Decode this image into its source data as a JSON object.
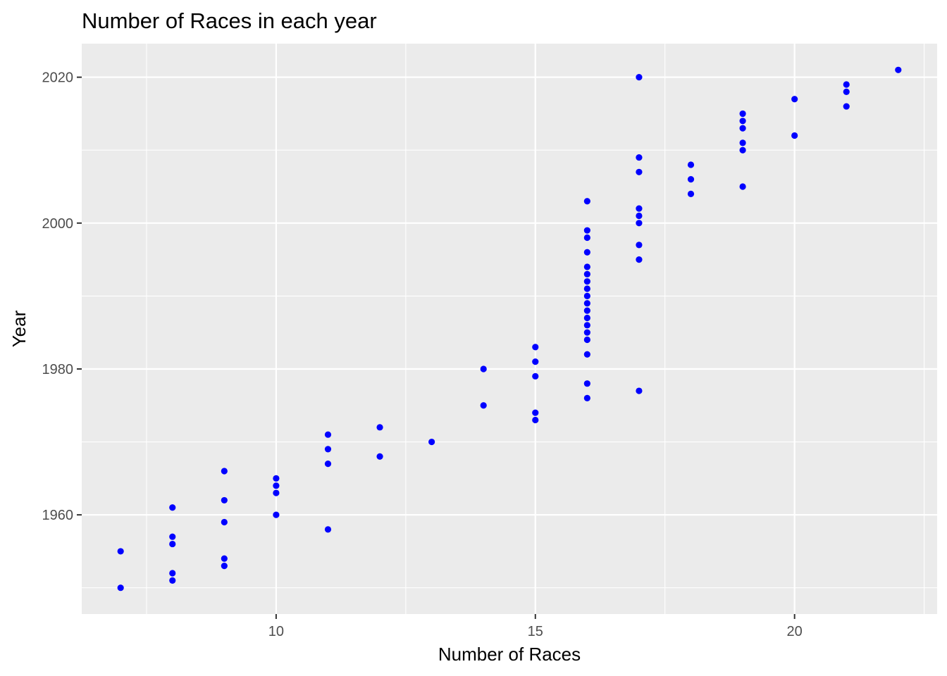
{
  "chart_data": {
    "type": "scatter",
    "title": "Number of Races in each year",
    "xlabel": "Number of Races",
    "ylabel": "Year",
    "xlim": [
      6.25,
      22.75
    ],
    "ylim": [
      1946.4,
      2024.6
    ],
    "x_ticks": [
      10,
      15,
      20
    ],
    "x_minor_ticks": [
      7.5,
      12.5,
      17.5,
      22.5
    ],
    "y_ticks": [
      1960,
      1980,
      2000,
      2020
    ],
    "y_minor_ticks": [
      1950,
      1970,
      1990,
      2010
    ],
    "grid": true,
    "point_color": "#0000FF",
    "panel_background": "#EBEBEB",
    "points": [
      {
        "x": 7,
        "y": 1950
      },
      {
        "x": 7,
        "y": 1955
      },
      {
        "x": 8,
        "y": 1951
      },
      {
        "x": 8,
        "y": 1952
      },
      {
        "x": 8,
        "y": 1956
      },
      {
        "x": 8,
        "y": 1957
      },
      {
        "x": 8,
        "y": 1961
      },
      {
        "x": 9,
        "y": 1953
      },
      {
        "x": 9,
        "y": 1954
      },
      {
        "x": 9,
        "y": 1959
      },
      {
        "x": 9,
        "y": 1962
      },
      {
        "x": 9,
        "y": 1966
      },
      {
        "x": 10,
        "y": 1960
      },
      {
        "x": 10,
        "y": 1963
      },
      {
        "x": 10,
        "y": 1964
      },
      {
        "x": 10,
        "y": 1965
      },
      {
        "x": 11,
        "y": 1958
      },
      {
        "x": 11,
        "y": 1967
      },
      {
        "x": 11,
        "y": 1969
      },
      {
        "x": 11,
        "y": 1971
      },
      {
        "x": 12,
        "y": 1968
      },
      {
        "x": 12,
        "y": 1972
      },
      {
        "x": 13,
        "y": 1970
      },
      {
        "x": 14,
        "y": 1975
      },
      {
        "x": 14,
        "y": 1980
      },
      {
        "x": 15,
        "y": 1973
      },
      {
        "x": 15,
        "y": 1974
      },
      {
        "x": 15,
        "y": 1979
      },
      {
        "x": 15,
        "y": 1981
      },
      {
        "x": 15,
        "y": 1983
      },
      {
        "x": 16,
        "y": 1976
      },
      {
        "x": 16,
        "y": 1978
      },
      {
        "x": 16,
        "y": 1982
      },
      {
        "x": 16,
        "y": 1984
      },
      {
        "x": 16,
        "y": 1985
      },
      {
        "x": 16,
        "y": 1986
      },
      {
        "x": 16,
        "y": 1987
      },
      {
        "x": 16,
        "y": 1988
      },
      {
        "x": 16,
        "y": 1989
      },
      {
        "x": 16,
        "y": 1990
      },
      {
        "x": 16,
        "y": 1991
      },
      {
        "x": 16,
        "y": 1992
      },
      {
        "x": 16,
        "y": 1993
      },
      {
        "x": 16,
        "y": 1994
      },
      {
        "x": 16,
        "y": 1996
      },
      {
        "x": 16,
        "y": 1998
      },
      {
        "x": 16,
        "y": 1999
      },
      {
        "x": 16,
        "y": 2003
      },
      {
        "x": 17,
        "y": 1977
      },
      {
        "x": 17,
        "y": 1995
      },
      {
        "x": 17,
        "y": 1997
      },
      {
        "x": 17,
        "y": 2000
      },
      {
        "x": 17,
        "y": 2001
      },
      {
        "x": 17,
        "y": 2002
      },
      {
        "x": 17,
        "y": 2007
      },
      {
        "x": 17,
        "y": 2009
      },
      {
        "x": 17,
        "y": 2020
      },
      {
        "x": 18,
        "y": 2004
      },
      {
        "x": 18,
        "y": 2006
      },
      {
        "x": 18,
        "y": 2008
      },
      {
        "x": 19,
        "y": 2005
      },
      {
        "x": 19,
        "y": 2010
      },
      {
        "x": 19,
        "y": 2011
      },
      {
        "x": 19,
        "y": 2013
      },
      {
        "x": 19,
        "y": 2014
      },
      {
        "x": 19,
        "y": 2015
      },
      {
        "x": 20,
        "y": 2012
      },
      {
        "x": 20,
        "y": 2017
      },
      {
        "x": 21,
        "y": 2016
      },
      {
        "x": 21,
        "y": 2018
      },
      {
        "x": 21,
        "y": 2019
      },
      {
        "x": 22,
        "y": 2021
      }
    ]
  }
}
